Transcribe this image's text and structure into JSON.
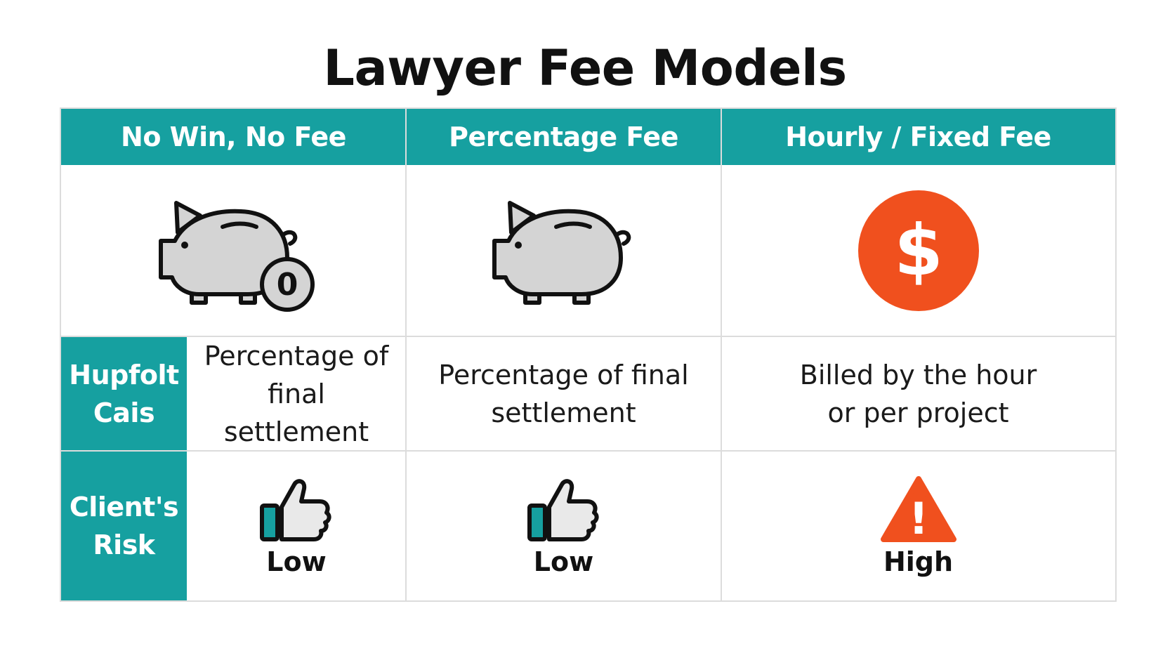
{
  "title": "Lawyer Fee Models",
  "columns": [
    {
      "header": "No Win, No Fee",
      "icon": "piggy-bank-zero-coin-icon",
      "cost": "Percentage of final settlement",
      "risk": "Low",
      "risk_icon": "thumbs-up-icon"
    },
    {
      "header": "Percentage Fee",
      "icon": "piggy-bank-icon",
      "cost": "Percentage of final settlement",
      "risk": "Low",
      "risk_icon": "thumbs-up-icon"
    },
    {
      "header": "Hourly / Fixed Fee",
      "icon": "dollar-coin-icon",
      "cost": "Billed by the hour or per project",
      "risk": "High",
      "risk_icon": "warning-triangle-icon"
    }
  ],
  "row_headers": {
    "cost": "Hupfolt Cais",
    "risk": "Client's Risk"
  },
  "coin_label": "0",
  "dollar_symbol": "$",
  "warning_symbol": "!",
  "colors": {
    "teal": "#16a0a0",
    "orange": "#f0501e",
    "gray_fill": "#d4d4d4",
    "outline": "#111111"
  }
}
